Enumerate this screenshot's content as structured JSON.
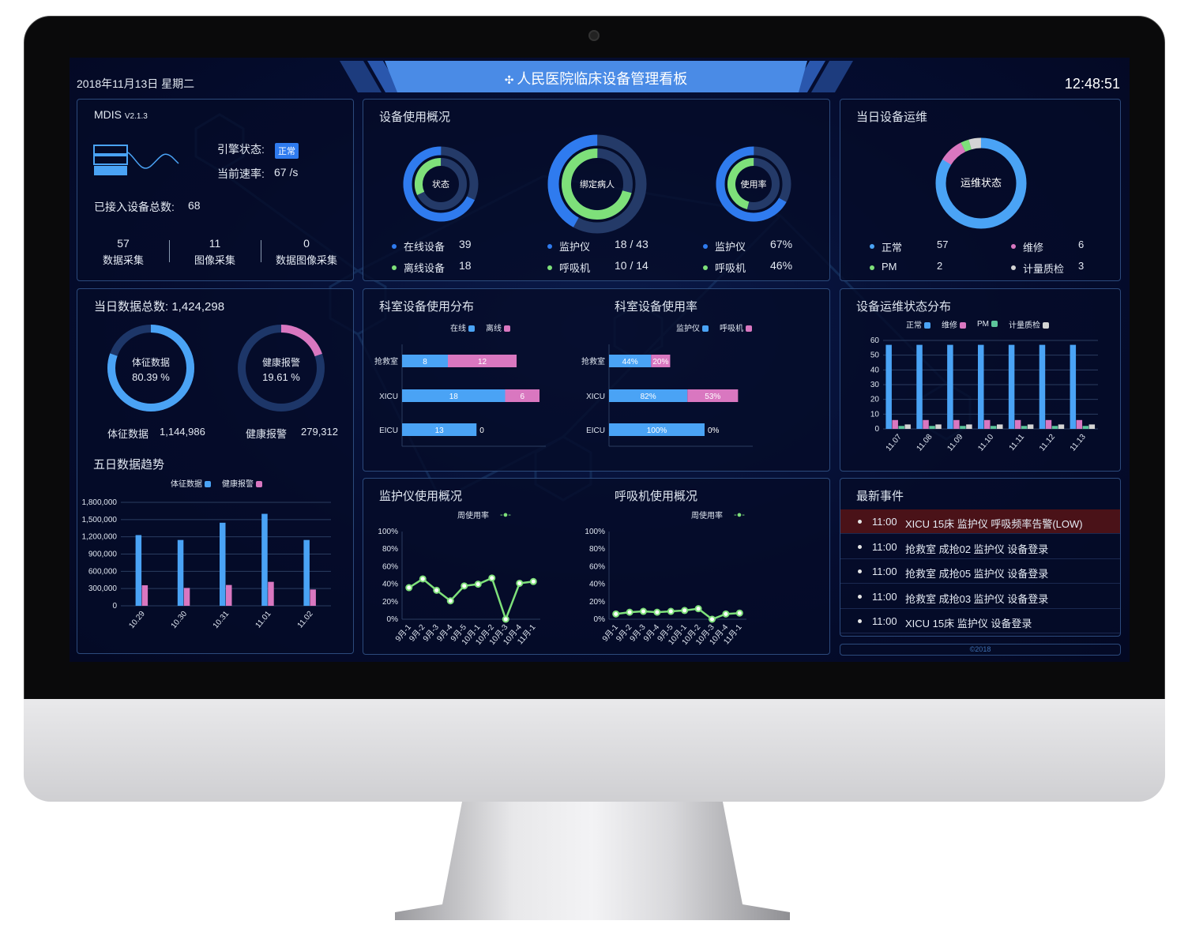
{
  "header": {
    "date": "2018年11月13日 星期二",
    "title": "人民医院临床设备管理看板",
    "time": "12:48:51",
    "logo_icon": "puzzle-sparkle-icon"
  },
  "engine": {
    "name": "MDIS",
    "version": "V2.1.3",
    "status_label": "引擎状态:",
    "status_badge": "正常",
    "rate_label": "当前速率:",
    "rate_value": "67 /s",
    "total_label": "已接入设备总数:",
    "total_value": "68",
    "stats": [
      {
        "value": "57",
        "label": "数据采集"
      },
      {
        "value": "11",
        "label": "图像采集"
      },
      {
        "value": "0",
        "label": "数据图像采集"
      }
    ],
    "icon": "server-wave-icon"
  },
  "usage": {
    "title": "设备使用概况",
    "donuts": [
      {
        "center": "状态",
        "outer_fraction": 0.68,
        "inner_fraction": 0.32,
        "rows": [
          {
            "label": "在线设备",
            "value": "39"
          },
          {
            "label": "离线设备",
            "value": "18"
          }
        ]
      },
      {
        "center": "绑定病人",
        "outer_fraction": 0.42,
        "inner_fraction": 0.71,
        "rows": [
          {
            "label": "监护仪",
            "value": "18 / 43"
          },
          {
            "label": "呼吸机",
            "value": "10 / 14"
          }
        ]
      },
      {
        "center": "使用率",
        "outer_fraction": 0.67,
        "inner_fraction": 0.46,
        "rows": [
          {
            "label": "监护仪",
            "value": "67%"
          },
          {
            "label": "呼吸机",
            "value": "46%"
          }
        ]
      }
    ]
  },
  "maintenance": {
    "title": "当日设备运维",
    "center": "运维状态",
    "items": [
      {
        "label": "正常",
        "value": "57",
        "color": "#4aa3f5"
      },
      {
        "label": "维修",
        "value": "6",
        "color": "#d977c0"
      },
      {
        "label": "PM",
        "value": "2",
        "color": "#7ee07a"
      },
      {
        "label": "计量质检",
        "value": "3",
        "color": "#d4d4d4"
      }
    ]
  },
  "daily": {
    "title_label": "当日数据总数:",
    "total": "1,424,298",
    "donuts": [
      {
        "name": "体征数据",
        "percent": "80.39 %",
        "fraction": 0.8039,
        "value": "1,144,986",
        "color": "#4aa3f5"
      },
      {
        "name": "健康报警",
        "percent": "19.61 %",
        "fraction": 0.1961,
        "value": "279,312",
        "color": "#d977c0"
      }
    ]
  },
  "events": {
    "title": "最新事件",
    "items": [
      {
        "time": "11:00",
        "text": "XICU 15床 监护仪 呼吸频率告警(LOW)",
        "alert": true
      },
      {
        "time": "11:00",
        "text": "抢救室 成抢02 监护仪 设备登录",
        "alert": false
      },
      {
        "time": "11:00",
        "text": "抢救室 成抢05 监护仪 设备登录",
        "alert": false
      },
      {
        "time": "11:00",
        "text": "抢救室 成抢03 监护仪 设备登录",
        "alert": false
      },
      {
        "time": "11:00",
        "text": "XICU 15床 监护仪 设备登录",
        "alert": false
      }
    ]
  },
  "footer": "©2018",
  "colors": {
    "blue": "#4aa3f5",
    "donut_blue": "#2f7bef",
    "green": "#7ee07a",
    "pink": "#d977c0",
    "pm_green": "#5cc59a",
    "gray": "#d4d4d4",
    "track": "#243a68",
    "alert_row": "#4a1218",
    "banner": "#4a8be6"
  },
  "chart_data": [
    {
      "id": "five_day",
      "type": "bar",
      "title": "五日数据趋势",
      "categories": [
        "10.29",
        "10.30",
        "10.31",
        "11.01",
        "11.02"
      ],
      "series": [
        {
          "name": "体征数据",
          "values": [
            1230000,
            1145000,
            1445000,
            1600000,
            1145000
          ]
        },
        {
          "name": "健康报警",
          "values": [
            357000,
            311000,
            362000,
            417000,
            284000
          ]
        }
      ],
      "ylim": [
        0,
        1800000
      ],
      "yticks": [
        "0",
        "300,000",
        "600,000",
        "900,000",
        "1,200,000",
        "1,500,000",
        "1,800,000"
      ],
      "grid": true,
      "legend": "top"
    },
    {
      "id": "dept_distribution",
      "type": "bar",
      "orientation": "horizontal",
      "stacked": true,
      "title": "科室设备使用分布",
      "categories": [
        "抢救室",
        "XICU",
        "EICU"
      ],
      "series": [
        {
          "name": "在线",
          "values": [
            8,
            18,
            13
          ]
        },
        {
          "name": "离线",
          "values": [
            12,
            6,
            0
          ]
        }
      ],
      "legend": "top"
    },
    {
      "id": "dept_usage_rate",
      "type": "bar",
      "orientation": "horizontal",
      "stacked": true,
      "title": "科室设备使用率",
      "categories": [
        "抢救室",
        "XICU",
        "EICU"
      ],
      "series": [
        {
          "name": "监护仪",
          "values": [
            44,
            82,
            100
          ]
        },
        {
          "name": "呼吸机",
          "values": [
            20,
            53,
            0
          ]
        }
      ],
      "unit": "%",
      "legend": "top"
    },
    {
      "id": "maintenance_distribution",
      "type": "bar",
      "title": "设备运维状态分布",
      "categories": [
        "11.07",
        "11.08",
        "11.09",
        "11.10",
        "11.11",
        "11.12",
        "11.13"
      ],
      "series": [
        {
          "name": "正常",
          "values": [
            57,
            57,
            57,
            57,
            57,
            57,
            57
          ]
        },
        {
          "name": "维修",
          "values": [
            6,
            6,
            6,
            6,
            6,
            6,
            6
          ]
        },
        {
          "name": "PM",
          "values": [
            2,
            2,
            2,
            2,
            2,
            2,
            2
          ]
        },
        {
          "name": "计量质检",
          "values": [
            3,
            3,
            3,
            3,
            3,
            3,
            3
          ]
        }
      ],
      "ylim": [
        0,
        60
      ],
      "yticks": [
        "0",
        "10",
        "20",
        "30",
        "40",
        "50",
        "60"
      ],
      "grid": true,
      "legend": "top"
    },
    {
      "id": "monitor_usage",
      "type": "line",
      "title": "监护仪使用概况",
      "categories": [
        "9月-1",
        "9月-2",
        "9月-3",
        "9月-4",
        "9月-5",
        "10月-1",
        "10月-2",
        "10月-3",
        "10月-4",
        "11月-1"
      ],
      "series": [
        {
          "name": "周使用率",
          "values": [
            36,
            46,
            33,
            21,
            38,
            40,
            47,
            0,
            41,
            43
          ]
        }
      ],
      "ylim": [
        0,
        100
      ],
      "yticks": [
        "0%",
        "20%",
        "40%",
        "60%",
        "80%",
        "100%"
      ],
      "legend": "top"
    },
    {
      "id": "ventilator_usage",
      "type": "line",
      "title": "呼吸机使用概况",
      "categories": [
        "9月-1",
        "9月-2",
        "9月-3",
        "9月-4",
        "9月-5",
        "10月-1",
        "10月-2",
        "10月-3",
        "10月-4",
        "11月-1"
      ],
      "series": [
        {
          "name": "周使用率",
          "values": [
            6,
            8,
            9,
            8,
            9,
            10,
            12,
            0,
            6,
            7
          ]
        }
      ],
      "ylim": [
        0,
        100
      ],
      "yticks": [
        "0%",
        "20%",
        "40%",
        "60%",
        "80%",
        "100%"
      ],
      "legend": "top"
    }
  ]
}
